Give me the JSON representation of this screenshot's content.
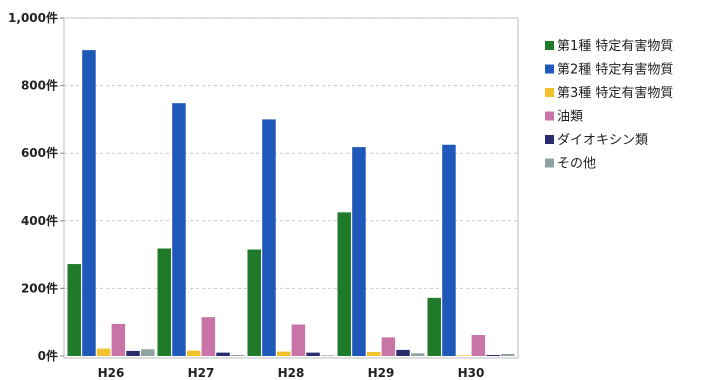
{
  "chart_data": {
    "type": "bar",
    "categories": [
      "H26",
      "H27",
      "H28",
      "H29",
      "H30"
    ],
    "ylim": [
      0,
      1000
    ],
    "yticks": [
      0,
      200,
      400,
      600,
      800,
      1000
    ],
    "ytick_labels": [
      "0件",
      "200件",
      "400件",
      "600件",
      "800件",
      "1,000件"
    ],
    "grid": true,
    "legend_position": "right",
    "series": [
      {
        "name": "第1種 特定有害物質",
        "color": "#1f7a2a",
        "values": [
          272,
          318,
          315,
          425,
          172
        ]
      },
      {
        "name": "第2種 特定有害物質",
        "color": "#1f58b8",
        "values": [
          905,
          748,
          700,
          618,
          625
        ]
      },
      {
        "name": "第3種 特定有害物質",
        "color": "#f2c12e",
        "values": [
          22,
          16,
          13,
          12,
          2
        ]
      },
      {
        "name": "油類",
        "color": "#c874a6",
        "values": [
          95,
          115,
          93,
          55,
          62
        ]
      },
      {
        "name": "ダイオキシン類",
        "color": "#2a2c6e",
        "values": [
          15,
          10,
          10,
          18,
          3
        ]
      },
      {
        "name": "その他",
        "color": "#8fa4a2",
        "values": [
          20,
          3,
          2,
          8,
          6
        ]
      }
    ]
  }
}
